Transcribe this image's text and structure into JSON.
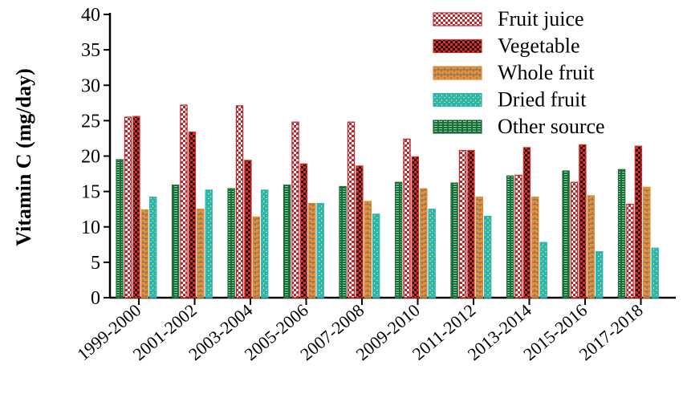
{
  "chart_data": {
    "type": "bar",
    "ylabel": "Vitamin  C (mg/day)",
    "xlabel": "",
    "ylim": [
      0,
      40
    ],
    "yticks": [
      "0",
      "5",
      "10",
      "15",
      "20",
      "25",
      "30",
      "35",
      "40"
    ],
    "categories": [
      "1999-2000",
      "2001-2002",
      "2003-2004",
      "2005-2006",
      "2007-2008",
      "2009-2010",
      "2011-2012",
      "2013-2014",
      "2015-2016",
      "2017-2018"
    ],
    "bar_order": [
      "Other source",
      "Fruit juice",
      "Vegetable",
      "Whole fruit",
      "Dried fruit"
    ],
    "legend_position": "top-right",
    "series": [
      {
        "name": "Fruit juice",
        "color": "#c0262c",
        "pattern": "checker-light",
        "values": [
          25.5,
          27.2,
          27.1,
          24.8,
          24.8,
          22.4,
          20.8,
          17.3,
          16.3,
          13.2
        ]
      },
      {
        "name": "Vegetable",
        "color": "#e02b24",
        "pattern": "checker-dark",
        "values": [
          25.6,
          23.4,
          19.4,
          18.9,
          18.6,
          19.9,
          20.8,
          21.2,
          21.6,
          21.4
        ]
      },
      {
        "name": "Whole fruit",
        "color": "#e08a2b",
        "pattern": "brick",
        "values": [
          12.4,
          12.5,
          11.4,
          13.3,
          13.6,
          15.4,
          14.2,
          14.2,
          14.4,
          15.6
        ]
      },
      {
        "name": "Dried fruit",
        "color": "#2bb6b6",
        "pattern": "dots",
        "values": [
          14.2,
          15.2,
          15.2,
          13.3,
          11.8,
          12.5,
          11.5,
          7.8,
          6.5,
          7.0
        ]
      },
      {
        "name": "Other source",
        "color": "#1f6b3a",
        "pattern": "dash",
        "values": [
          19.5,
          15.9,
          15.4,
          15.9,
          15.7,
          16.3,
          16.2,
          17.2,
          17.9,
          18.1
        ]
      }
    ]
  }
}
